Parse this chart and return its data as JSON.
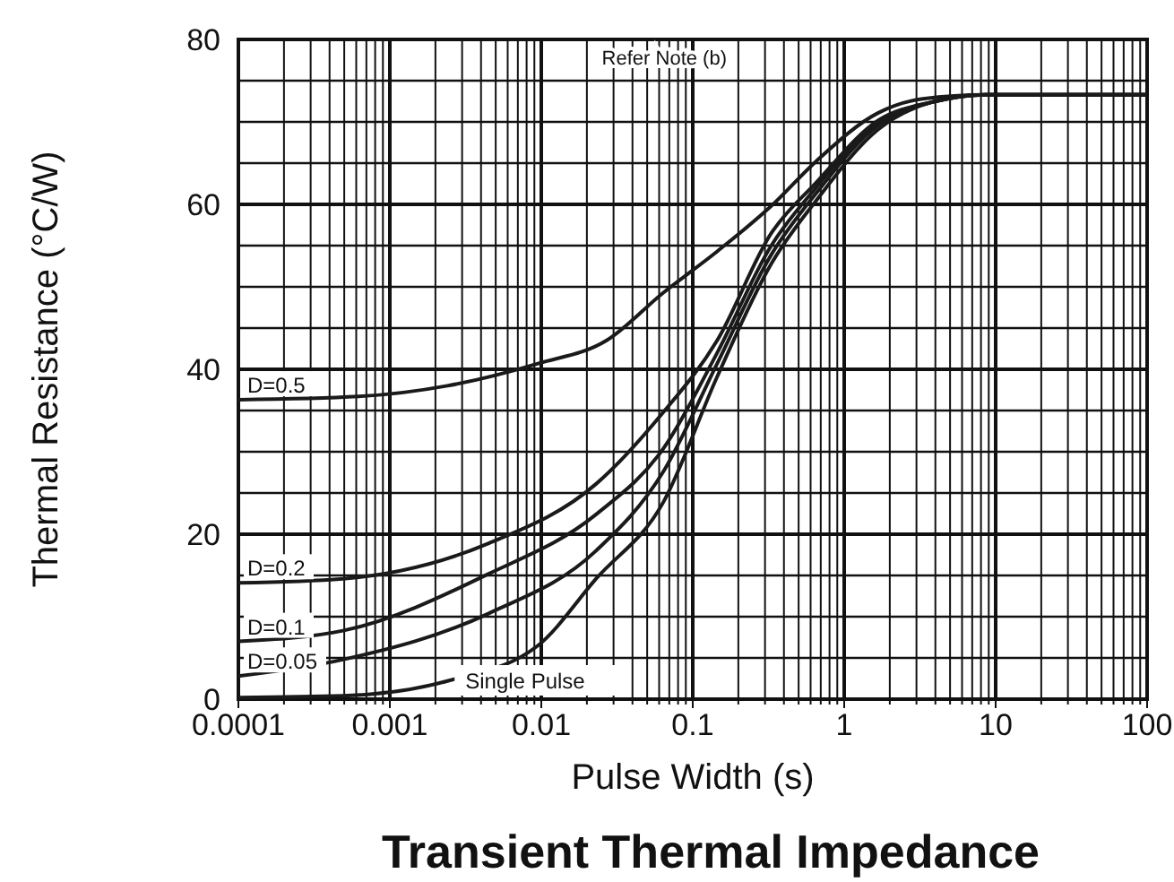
{
  "chart_data": {
    "type": "line",
    "title": "Transient Thermal Impedance",
    "xlabel": "Pulse Width (s)",
    "ylabel": "Thermal Resistance (°C/W)",
    "log": "x",
    "grid": true,
    "marker": "none",
    "line_style": "solid",
    "xlim": [
      0.0001,
      100
    ],
    "ylim": [
      0,
      80
    ],
    "xticks": [
      0.0001,
      {
        "value": 0.0002,
        "label": null
      },
      {
        "value": 0.0003,
        "label": null
      },
      {
        "value": 0.0004,
        "label": null
      },
      {
        "value": 0.0005,
        "label": null
      },
      {
        "value": 0.0006,
        "label": null
      },
      {
        "value": 0.0007,
        "label": null
      },
      {
        "value": 0.0008,
        "label": null
      },
      {
        "value": 0.0009,
        "label": null
      },
      0.001,
      {
        "value": 0.002,
        "label": null
      },
      {
        "value": 0.003,
        "label": null
      },
      {
        "value": 0.004,
        "label": null
      },
      {
        "value": 0.005,
        "label": null
      },
      {
        "value": 0.006,
        "label": null
      },
      {
        "value": 0.007,
        "label": null
      },
      {
        "value": 0.008,
        "label": null
      },
      {
        "value": 0.009,
        "label": null
      },
      0.01,
      {
        "value": 0.02,
        "label": null
      },
      {
        "value": 0.03,
        "label": null
      },
      {
        "value": 0.04,
        "label": null
      },
      {
        "value": 0.05,
        "label": null
      },
      {
        "value": 0.06,
        "label": null
      },
      {
        "value": 0.07,
        "label": null
      },
      {
        "value": 0.08,
        "label": null
      },
      {
        "value": 0.09,
        "label": null
      },
      0.1,
      {
        "value": 0.2,
        "label": null
      },
      {
        "value": 0.3,
        "label": null
      },
      {
        "value": 0.4,
        "label": null
      },
      {
        "value": 0.5,
        "label": null
      },
      {
        "value": 0.6,
        "label": null
      },
      {
        "value": 0.7,
        "label": null
      },
      {
        "value": 0.8,
        "label": null
      },
      {
        "value": 0.9,
        "label": null
      },
      1,
      {
        "value": 2,
        "label": null
      },
      {
        "value": 3,
        "label": null
      },
      {
        "value": 4,
        "label": null
      },
      {
        "value": 5,
        "label": null
      },
      {
        "value": 6,
        "label": null
      },
      {
        "value": 7,
        "label": null
      },
      {
        "value": 8,
        "label": null
      },
      {
        "value": 9,
        "label": null
      },
      10,
      {
        "value": 20,
        "label": null
      },
      {
        "value": 30,
        "label": null
      },
      {
        "value": 40,
        "label": null
      },
      {
        "value": 50,
        "label": null
      },
      {
        "value": 60,
        "label": null
      },
      {
        "value": 70,
        "label": null
      },
      {
        "value": 80,
        "label": null
      },
      {
        "value": 90,
        "label": null
      },
      100
    ],
    "yticks": [
      0,
      {
        "value": 5,
        "label": null
      },
      {
        "value": 10,
        "label": null
      },
      {
        "value": 15,
        "label": null
      },
      20,
      {
        "value": 25,
        "label": null
      },
      {
        "value": 30,
        "label": null
      },
      {
        "value": 35,
        "label": null
      },
      40,
      {
        "value": 45,
        "label": null
      },
      {
        "value": 50,
        "label": null
      },
      {
        "value": 55,
        "label": null
      },
      60,
      {
        "value": 65,
        "label": null
      },
      {
        "value": 70,
        "label": null
      },
      {
        "value": 75,
        "label": null
      },
      80
    ],
    "series": [
      {
        "name": "D=0.5",
        "color": "#1a1a1a",
        "x": [
          0.0001,
          0.00062,
          0.0024,
          0.0095,
          0.027,
          0.064,
          0.145,
          0.33,
          0.65,
          1.68,
          3.3,
          8.6,
          100
        ],
        "values": [
          36.3,
          36.7,
          38.0,
          40.7,
          43.5,
          49.3,
          54.3,
          59.8,
          65.2,
          71.1,
          72.8,
          73.3,
          73.3
        ]
      },
      {
        "name": "D=0.2",
        "color": "#1a1a1a",
        "x": [
          0.0001,
          0.00049,
          0.0045,
          0.023,
          0.064,
          0.145,
          0.33,
          0.65,
          1.68,
          3.8,
          8.6,
          100
        ],
        "values": [
          14.1,
          14.6,
          18.9,
          26.1,
          34.8,
          43.5,
          56.5,
          62.6,
          70.2,
          72.4,
          73.3,
          73.3
        ]
      },
      {
        "name": "D=0.1",
        "color": "#1a1a1a",
        "x": [
          0.0001,
          0.00049,
          0.0045,
          0.023,
          0.064,
          0.145,
          0.33,
          0.65,
          1.68,
          3.8,
          8.6,
          100
        ],
        "values": [
          7.0,
          8.3,
          15.2,
          22.4,
          30.4,
          42.0,
          55.0,
          62.0,
          70.0,
          72.4,
          73.3,
          73.3
        ]
      },
      {
        "name": "D=0.05",
        "color": "#1a1a1a",
        "x": [
          0.0001,
          0.00049,
          0.0045,
          0.023,
          0.064,
          0.145,
          0.33,
          0.65,
          1.68,
          3.8,
          8.6,
          100
        ],
        "values": [
          2.8,
          4.8,
          10.4,
          18.0,
          27.6,
          40.7,
          53.9,
          61.3,
          69.6,
          72.4,
          73.3,
          73.3
        ]
      },
      {
        "name": "Single Pulse",
        "color": "#1a1a1a",
        "x": [
          0.0001,
          0.00049,
          0.0024,
          0.0095,
          0.023,
          0.064,
          0.145,
          0.33,
          0.65,
          1.68,
          3.8,
          8.6,
          100
        ],
        "values": [
          0.2,
          0.4,
          2.2,
          6.5,
          14.6,
          23.9,
          39.1,
          52.8,
          60.4,
          69.1,
          72.4,
          73.3,
          73.3
        ]
      }
    ],
    "annotations": [
      "Refer Note (b)"
    ]
  }
}
